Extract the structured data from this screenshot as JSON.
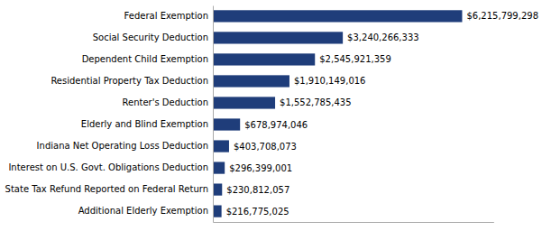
{
  "chart_data": {
    "type": "bar",
    "orientation": "horizontal",
    "categories": [
      "Additional Elderly Exemption",
      "State Tax Refund Reported on Federal Return",
      "Interest on U.S. Govt. Obligations Deduction",
      "Indiana Net Operating Loss Deduction",
      "Elderly and Blind Exemption",
      "Renter's Deduction",
      "Residential Property Tax Deduction",
      "Dependent Child Exemption",
      "Social Security Deduction",
      "Federal Exemption"
    ],
    "values": [
      216775025,
      230812057,
      296399001,
      403708073,
      678974046,
      1552785435,
      1910149016,
      2545921359,
      3240266333,
      6215799298
    ],
    "value_labels": [
      "$216,775,025",
      "$230,812,057",
      "$296,399,001",
      "$403,708,073",
      "$678,974,046",
      "$1,552,785,435",
      "$1,910,149,016",
      "$2,545,921,359",
      "$3,240,266,333",
      "$6,215,799,298"
    ],
    "data_labels": true,
    "color": "#1f3d7a",
    "xlim": [
      0,
      7000000000
    ],
    "tick_labels": "y"
  }
}
